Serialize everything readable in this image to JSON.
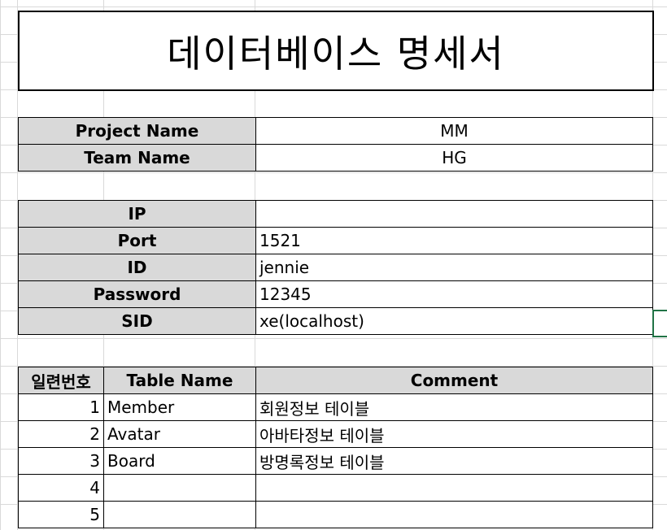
{
  "title": "데이터베이스 명세서",
  "project_info": [
    {
      "label": "Project Name",
      "value": "MM"
    },
    {
      "label": "Team Name",
      "value": "HG"
    }
  ],
  "connection_info": [
    {
      "label": "IP",
      "value": ""
    },
    {
      "label": "Port",
      "value": "1521"
    },
    {
      "label": "ID",
      "value": "jennie"
    },
    {
      "label": "Password",
      "value": "12345"
    },
    {
      "label": "SID",
      "value": "xe(localhost)"
    }
  ],
  "table_list": {
    "headers": [
      "일련번호",
      "Table Name",
      "Comment"
    ],
    "rows": [
      {
        "no": "1",
        "name": "Member",
        "comment": "회원정보 테이블"
      },
      {
        "no": "2",
        "name": "Avatar",
        "comment": "아바타정보 테이블"
      },
      {
        "no": "3",
        "name": "Board",
        "comment": "방명록정보 테이블"
      },
      {
        "no": "4",
        "name": "",
        "comment": ""
      },
      {
        "no": "5",
        "name": "",
        "comment": ""
      }
    ]
  },
  "colors": {
    "header_fill": "#d9d9d9",
    "gridline": "#d9d9d9",
    "selection": "#217346"
  }
}
